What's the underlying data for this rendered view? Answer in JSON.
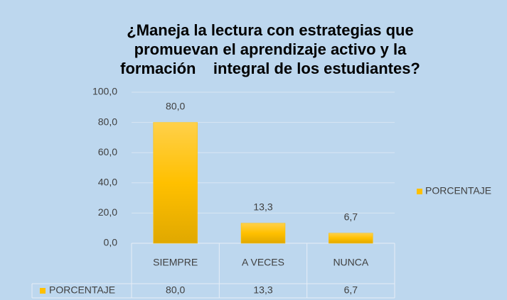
{
  "chart_data": {
    "type": "bar",
    "title": [
      "¿Maneja la lectura con estrategias que",
      "promuevan el aprendizaje activo y la",
      "formación    integral de los estudiantes?"
    ],
    "categories": [
      "SIEMPRE",
      "A VECES",
      "NUNCA"
    ],
    "series": [
      {
        "name": "PORCENTAJE",
        "color": "#ffc000",
        "values": [
          80.0,
          13.3,
          6.7
        ],
        "value_labels": [
          "80,0",
          "13,3",
          "6,7"
        ]
      }
    ],
    "ylim": [
      0,
      100
    ],
    "yticks": [
      {
        "value": 0,
        "label": "0,0"
      },
      {
        "value": 20,
        "label": "20,0"
      },
      {
        "value": 40,
        "label": "40,0"
      },
      {
        "value": 60,
        "label": "60,0"
      },
      {
        "value": 80,
        "label": "80,0"
      },
      {
        "value": 100,
        "label": "100,0"
      }
    ],
    "grid": true,
    "legend": "right",
    "data_table": true
  }
}
